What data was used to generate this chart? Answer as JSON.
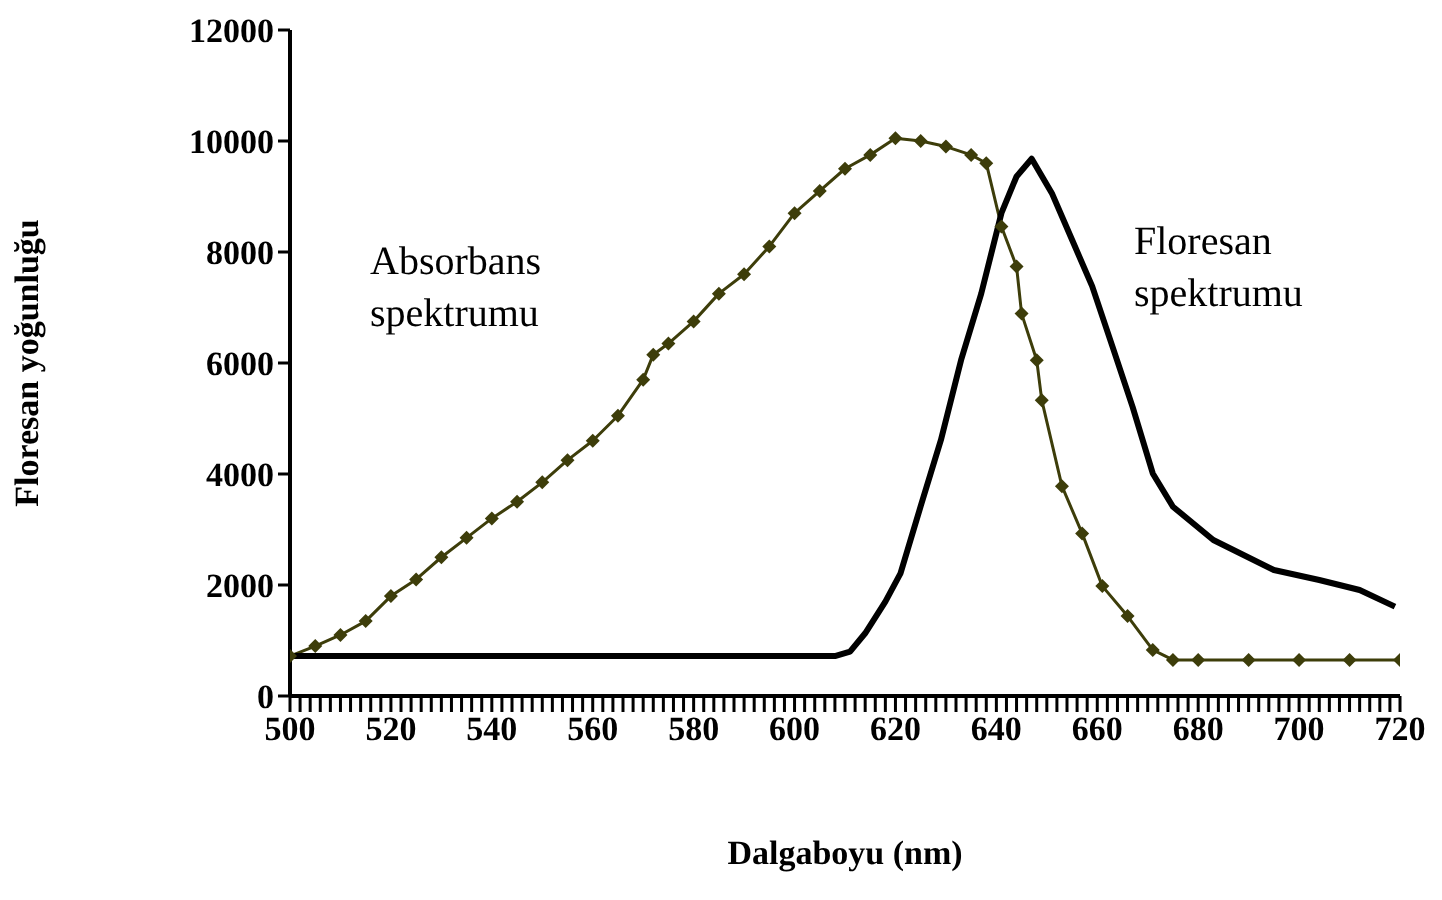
{
  "chart_data": {
    "type": "line",
    "xlabel": "Dalgaboyu (nm)",
    "ylabel": "Floresan yoğunluğu",
    "series": [
      {
        "name": "Absorbans spektrumu",
        "color": "#3d3d0a",
        "marker": "diamond",
        "x": [
          500,
          505,
          510,
          515,
          520,
          525,
          530,
          535,
          540,
          545,
          550,
          555,
          560,
          565,
          570,
          572,
          575,
          580,
          585,
          590,
          595,
          600,
          605,
          610,
          615,
          620,
          625,
          630,
          635,
          638,
          641,
          644,
          645,
          648,
          649,
          653,
          657,
          661,
          666,
          671,
          675,
          680,
          690,
          700,
          710,
          720
        ],
        "values": [
          720,
          900,
          1100,
          1350,
          1800,
          2100,
          2500,
          2850,
          3200,
          3500,
          3850,
          4250,
          4600,
          5050,
          5700,
          6150,
          6350,
          6750,
          7250,
          7600,
          8100,
          8700,
          9100,
          9500,
          9750,
          10050,
          10000,
          9900,
          9750,
          9600,
          8460,
          7740,
          6890,
          6050,
          5330,
          3780,
          2930,
          1980,
          1440,
          830,
          650,
          650,
          650,
          650,
          650,
          650
        ]
      },
      {
        "name": "Floresan spektrumu",
        "color": "#000000",
        "marker": "none",
        "x": [
          500,
          520,
          540,
          560,
          580,
          600,
          608,
          611,
          614,
          618,
          621,
          625,
          629,
          633,
          637,
          641,
          644,
          647,
          651,
          655,
          659,
          663,
          667,
          671,
          675,
          683,
          695,
          704,
          712,
          719
        ],
        "values": [
          720,
          720,
          720,
          720,
          720,
          720,
          720,
          800,
          1130,
          1700,
          2210,
          3420,
          4610,
          6050,
          7250,
          8700,
          9360,
          9680,
          9060,
          8220,
          7380,
          6300,
          5210,
          4010,
          3410,
          2810,
          2270,
          2090,
          1910,
          1610
        ]
      }
    ],
    "xlim": [
      500,
      720
    ],
    "xticks": [
      500,
      {
        "value": 502,
        "label": null
      },
      {
        "value": 504,
        "label": null
      },
      {
        "value": 506,
        "label": null
      },
      {
        "value": 508,
        "label": null
      },
      {
        "value": 510,
        "label": null
      },
      {
        "value": 512,
        "label": null
      },
      {
        "value": 514,
        "label": null
      },
      {
        "value": 516,
        "label": null
      },
      {
        "value": 518,
        "label": null
      },
      520,
      {
        "value": 522,
        "label": null
      },
      {
        "value": 524,
        "label": null
      },
      {
        "value": 526,
        "label": null
      },
      {
        "value": 528,
        "label": null
      },
      {
        "value": 530,
        "label": null
      },
      {
        "value": 532,
        "label": null
      },
      {
        "value": 534,
        "label": null
      },
      {
        "value": 536,
        "label": null
      },
      {
        "value": 538,
        "label": null
      },
      540,
      {
        "value": 542,
        "label": null
      },
      {
        "value": 544,
        "label": null
      },
      {
        "value": 546,
        "label": null
      },
      {
        "value": 548,
        "label": null
      },
      {
        "value": 550,
        "label": null
      },
      {
        "value": 552,
        "label": null
      },
      {
        "value": 554,
        "label": null
      },
      {
        "value": 556,
        "label": null
      },
      {
        "value": 558,
        "label": null
      },
      560,
      {
        "value": 562,
        "label": null
      },
      {
        "value": 564,
        "label": null
      },
      {
        "value": 566,
        "label": null
      },
      {
        "value": 568,
        "label": null
      },
      {
        "value": 570,
        "label": null
      },
      {
        "value": 572,
        "label": null
      },
      {
        "value": 574,
        "label": null
      },
      {
        "value": 576,
        "label": null
      },
      {
        "value": 578,
        "label": null
      },
      580,
      {
        "value": 582,
        "label": null
      },
      {
        "value": 584,
        "label": null
      },
      {
        "value": 586,
        "label": null
      },
      {
        "value": 588,
        "label": null
      },
      {
        "value": 590,
        "label": null
      },
      {
        "value": 592,
        "label": null
      },
      {
        "value": 594,
        "label": null
      },
      {
        "value": 596,
        "label": null
      },
      {
        "value": 598,
        "label": null
      },
      600,
      {
        "value": 602,
        "label": null
      },
      {
        "value": 604,
        "label": null
      },
      {
        "value": 606,
        "label": null
      },
      {
        "value": 608,
        "label": null
      },
      {
        "value": 610,
        "label": null
      },
      {
        "value": 612,
        "label": null
      },
      {
        "value": 614,
        "label": null
      },
      {
        "value": 616,
        "label": null
      },
      {
        "value": 618,
        "label": null
      },
      620,
      {
        "value": 622,
        "label": null
      },
      {
        "value": 624,
        "label": null
      },
      {
        "value": 626,
        "label": null
      },
      {
        "value": 628,
        "label": null
      },
      {
        "value": 630,
        "label": null
      },
      {
        "value": 632,
        "label": null
      },
      {
        "value": 634,
        "label": null
      },
      {
        "value": 636,
        "label": null
      },
      {
        "value": 638,
        "label": null
      },
      640,
      {
        "value": 642,
        "label": null
      },
      {
        "value": 644,
        "label": null
      },
      {
        "value": 646,
        "label": null
      },
      {
        "value": 648,
        "label": null
      },
      {
        "value": 650,
        "label": null
      },
      {
        "value": 652,
        "label": null
      },
      {
        "value": 654,
        "label": null
      },
      {
        "value": 656,
        "label": null
      },
      {
        "value": 658,
        "label": null
      },
      660,
      {
        "value": 662,
        "label": null
      },
      {
        "value": 664,
        "label": null
      },
      {
        "value": 666,
        "label": null
      },
      {
        "value": 668,
        "label": null
      },
      {
        "value": 670,
        "label": null
      },
      {
        "value": 672,
        "label": null
      },
      {
        "value": 674,
        "label": null
      },
      {
        "value": 676,
        "label": null
      },
      {
        "value": 678,
        "label": null
      },
      680,
      {
        "value": 682,
        "label": null
      },
      {
        "value": 684,
        "label": null
      },
      {
        "value": 686,
        "label": null
      },
      {
        "value": 688,
        "label": null
      },
      {
        "value": 690,
        "label": null
      },
      {
        "value": 692,
        "label": null
      },
      {
        "value": 694,
        "label": null
      },
      {
        "value": 696,
        "label": null
      },
      {
        "value": 698,
        "label": null
      },
      700,
      {
        "value": 702,
        "label": null
      },
      {
        "value": 704,
        "label": null
      },
      {
        "value": 706,
        "label": null
      },
      {
        "value": 708,
        "label": null
      },
      {
        "value": 710,
        "label": null
      },
      {
        "value": 712,
        "label": null
      },
      {
        "value": 714,
        "label": null
      },
      {
        "value": 716,
        "label": null
      },
      {
        "value": 718,
        "label": null
      },
      720
    ],
    "ylim": [
      0,
      12000
    ],
    "yticks": [
      0,
      2000,
      4000,
      6000,
      8000,
      10000,
      12000
    ],
    "grid": false,
    "legend": false
  }
}
